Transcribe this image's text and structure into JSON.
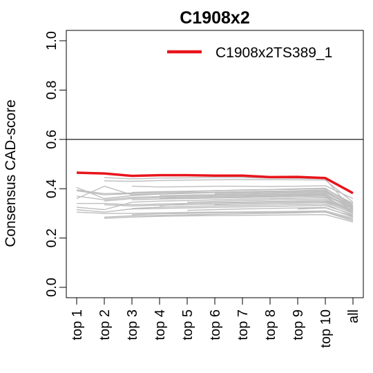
{
  "chart_data": {
    "type": "line",
    "title": "C1908x2",
    "ylabel": "Consensus CAD-score",
    "xlabel": "",
    "categories": [
      "top 1",
      "top 2",
      "top 3",
      "top 4",
      "top 5",
      "top 6",
      "top 7",
      "top 8",
      "top 9",
      "top 10",
      "all"
    ],
    "ylim": [
      0.0,
      1.0
    ],
    "yticks": [
      "0.0",
      "0.2",
      "0.4",
      "0.6",
      "0.8",
      "1.0"
    ],
    "reference_line": 0.6,
    "legend_position": "top-right",
    "highlight_color": "#e8141b",
    "background_color": "#bebebe",
    "highlight": {
      "name": "C1908x2TS389_1",
      "values": [
        0.465,
        0.462,
        0.452,
        0.455,
        0.455,
        0.453,
        0.453,
        0.447,
        0.448,
        0.443,
        0.382
      ]
    },
    "background_series": [
      [
        0.392,
        0.375,
        0.38,
        0.385,
        0.388,
        0.392,
        0.395,
        0.397,
        0.4,
        0.402,
        0.33
      ],
      [
        0.405,
        0.36,
        0.372,
        0.378,
        0.381,
        0.384,
        0.386,
        0.388,
        0.39,
        0.392,
        0.32
      ],
      [
        0.37,
        0.355,
        0.365,
        0.368,
        0.37,
        0.372,
        0.374,
        0.376,
        0.378,
        0.38,
        0.31
      ],
      [
        0.36,
        0.41,
        0.375,
        0.38,
        0.384,
        0.386,
        0.388,
        0.39,
        0.392,
        0.395,
        0.325
      ],
      [
        0.325,
        0.315,
        0.345,
        0.35,
        0.352,
        0.355,
        0.358,
        0.36,
        0.362,
        0.365,
        0.3
      ],
      [
        0.305,
        0.3,
        0.3,
        0.302,
        0.304,
        0.305,
        0.306,
        0.307,
        0.308,
        0.31,
        0.28
      ],
      [
        0.395,
        0.38,
        0.383,
        0.386,
        0.389,
        0.392,
        0.394,
        0.396,
        0.398,
        0.4,
        0.34
      ],
      [
        0.34,
        0.34,
        0.335,
        0.338,
        0.34,
        0.342,
        0.344,
        0.346,
        0.348,
        0.35,
        0.305
      ],
      [
        0.315,
        0.305,
        0.318,
        0.32,
        0.322,
        0.324,
        0.326,
        0.328,
        0.33,
        0.332,
        0.295
      ],
      [
        null,
        0.445,
        0.44,
        0.443,
        0.444,
        0.445,
        0.445,
        0.443,
        0.442,
        0.44,
        0.31
      ],
      [
        null,
        0.432,
        0.43,
        0.433,
        0.435,
        0.436,
        0.437,
        0.437,
        0.436,
        0.435,
        0.345
      ],
      [
        null,
        0.285,
        0.29,
        0.292,
        0.294,
        0.296,
        0.298,
        0.3,
        0.302,
        0.305,
        0.27
      ],
      [
        null,
        0.35,
        0.36,
        0.364,
        0.366,
        0.368,
        0.37,
        0.372,
        0.374,
        0.376,
        0.32
      ],
      [
        null,
        0.335,
        0.33,
        0.333,
        0.335,
        0.337,
        0.339,
        0.341,
        0.343,
        0.345,
        0.315
      ],
      [
        null,
        0.28,
        0.285,
        0.288,
        0.29,
        0.291,
        0.292,
        0.293,
        0.294,
        0.295,
        0.265
      ],
      [
        null,
        null,
        0.41,
        0.407,
        0.408,
        0.41,
        0.41,
        0.409,
        0.41,
        0.412,
        0.36
      ],
      [
        null,
        null,
        0.355,
        0.358,
        0.36,
        0.362,
        0.364,
        0.366,
        0.368,
        0.37,
        0.3
      ],
      [
        null,
        null,
        0.32,
        0.325,
        0.328,
        0.33,
        0.332,
        0.334,
        0.336,
        0.338,
        0.29
      ],
      [
        null,
        null,
        0.385,
        0.388,
        0.39,
        0.392,
        0.394,
        0.396,
        0.398,
        0.4,
        0.335
      ],
      [
        null,
        null,
        0.295,
        0.298,
        0.3,
        0.302,
        0.303,
        0.304,
        0.305,
        0.306,
        0.275
      ],
      [
        null,
        null,
        null,
        0.33,
        0.34,
        0.344,
        0.346,
        0.348,
        0.35,
        0.352,
        0.31
      ],
      [
        null,
        null,
        null,
        0.372,
        0.374,
        0.376,
        0.378,
        0.38,
        0.382,
        0.384,
        0.328
      ],
      [
        null,
        null,
        null,
        0.36,
        0.362,
        0.364,
        0.366,
        0.368,
        0.37,
        0.372,
        0.318
      ],
      [
        null,
        null,
        null,
        null,
        0.345,
        0.349,
        0.352,
        0.354,
        0.356,
        0.358,
        0.305
      ],
      [
        null,
        null,
        null,
        null,
        0.312,
        0.315,
        0.318,
        0.32,
        0.322,
        0.324,
        0.285
      ],
      [
        null,
        null,
        null,
        null,
        null,
        0.38,
        0.382,
        0.384,
        0.386,
        0.388,
        0.33
      ],
      [
        null,
        null,
        null,
        null,
        null,
        0.335,
        0.338,
        0.34,
        0.342,
        0.344,
        0.3
      ],
      [
        null,
        null,
        null,
        null,
        null,
        null,
        0.372,
        0.374,
        0.376,
        0.378,
        0.322
      ],
      [
        null,
        null,
        null,
        null,
        null,
        null,
        null,
        0.36,
        0.362,
        0.364,
        0.312
      ],
      [
        null,
        null,
        null,
        null,
        null,
        null,
        null,
        null,
        0.318,
        0.322,
        0.288
      ]
    ]
  }
}
